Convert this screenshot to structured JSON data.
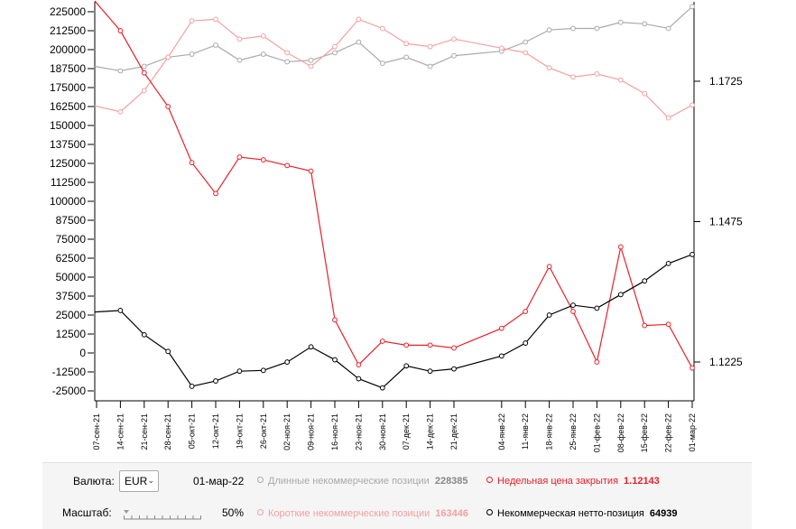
{
  "chart_data": {
    "type": "line",
    "categories": [
      "07-сен-21",
      "14-сен-21",
      "21-сен-21",
      "28-сен-21",
      "05-окт-21",
      "12-окт-21",
      "19-окт-21",
      "26-окт-21",
      "02-ноя-21",
      "09-ноя-21",
      "16-ноя-21",
      "23-ноя-21",
      "30-ноя-21",
      "07-дек-21",
      "14-дек-21",
      "21-дек-21",
      "04-янв-22",
      "11-янв-22",
      "18-янв-22",
      "25-янв-22",
      "01-фев-22",
      "08-фев-22",
      "15-фев-22",
      "22-фев-22",
      "01-мар-22"
    ],
    "x_index": [
      0,
      1,
      2,
      3,
      4,
      5,
      6,
      7,
      8,
      9,
      10,
      11,
      12,
      13,
      14,
      15,
      17,
      18,
      19,
      20,
      21,
      22,
      23,
      24,
      25
    ],
    "left_axis": {
      "ticks": [
        "225000",
        "212500",
        "200000",
        "187500",
        "175000",
        "162500",
        "150000",
        "137500",
        "125000",
        "112500",
        "100000",
        "87500",
        "75000",
        "62500",
        "50000",
        "37500",
        "25000",
        "12500",
        "0",
        "-12500",
        "-25000"
      ],
      "min": -25000,
      "max": 225000
    },
    "right_axis": {
      "ticks": [
        "1.1725",
        "1.1475",
        "1.1225"
      ]
    },
    "series": [
      {
        "name": "Длинные некоммерческие позиции",
        "color": "#aaaaaa",
        "axis": "left",
        "values": [
          189000,
          186000,
          189000,
          195000,
          197000,
          203000,
          193000,
          197000,
          192000,
          193000,
          198000,
          205000,
          191000,
          195000,
          189000,
          196000,
          199000,
          205000,
          213000,
          214000,
          214000,
          218000,
          217000,
          214000,
          228385
        ]
      },
      {
        "name": "Короткие некоммерческие позиции",
        "color": "#f4a0a0",
        "axis": "left",
        "values": [
          163000,
          159000,
          173000,
          195000,
          219000,
          220000,
          207000,
          209000,
          198000,
          189000,
          202000,
          220000,
          214000,
          204000,
          202000,
          207000,
          201000,
          198000,
          188000,
          182000,
          184000,
          180000,
          171000,
          155000,
          163446
        ]
      },
      {
        "name": "Недельная цена закрытия",
        "color": "#e8202a",
        "axis": "right",
        "values": [
          1.1868,
          1.1815,
          1.174,
          1.168,
          1.158,
          1.1525,
          1.159,
          1.1585,
          1.1575,
          1.1565,
          1.13,
          1.122,
          1.1262,
          1.1255,
          1.1255,
          1.125,
          1.1285,
          1.1315,
          1.1395,
          1.1315,
          1.1225,
          1.143,
          1.129,
          1.1292,
          1.12143
        ]
      },
      {
        "name": "Некоммерческая нетто-позиция",
        "color": "#000000",
        "axis": "left",
        "values": [
          27000,
          28000,
          12000,
          1000,
          -22000,
          -18500,
          -12000,
          -11500,
          -6000,
          4000,
          -4500,
          -17000,
          -23000,
          -8500,
          -12000,
          -10500,
          -2000,
          6500,
          25000,
          31500,
          29500,
          38500,
          47500,
          59000,
          64939
        ]
      }
    ]
  },
  "controls": {
    "currency_label": "Валюта:",
    "currency_value": "EUR",
    "date": "01-мар-22",
    "scale_label": "Масштаб:",
    "scale_value": "50%"
  },
  "legend": [
    {
      "label": "Длинные некоммерческие позиции",
      "value": "228385",
      "color": "#aaaaaa"
    },
    {
      "label": "Недельная цена закрытия",
      "value": "1.12143",
      "color": "#e8202a"
    },
    {
      "label": "Короткие некоммерческие позиции",
      "value": "163446",
      "color": "#f4a0a0"
    },
    {
      "label": "Некоммерческая нетто-позиция",
      "value": "64939",
      "color": "#000000"
    }
  ]
}
